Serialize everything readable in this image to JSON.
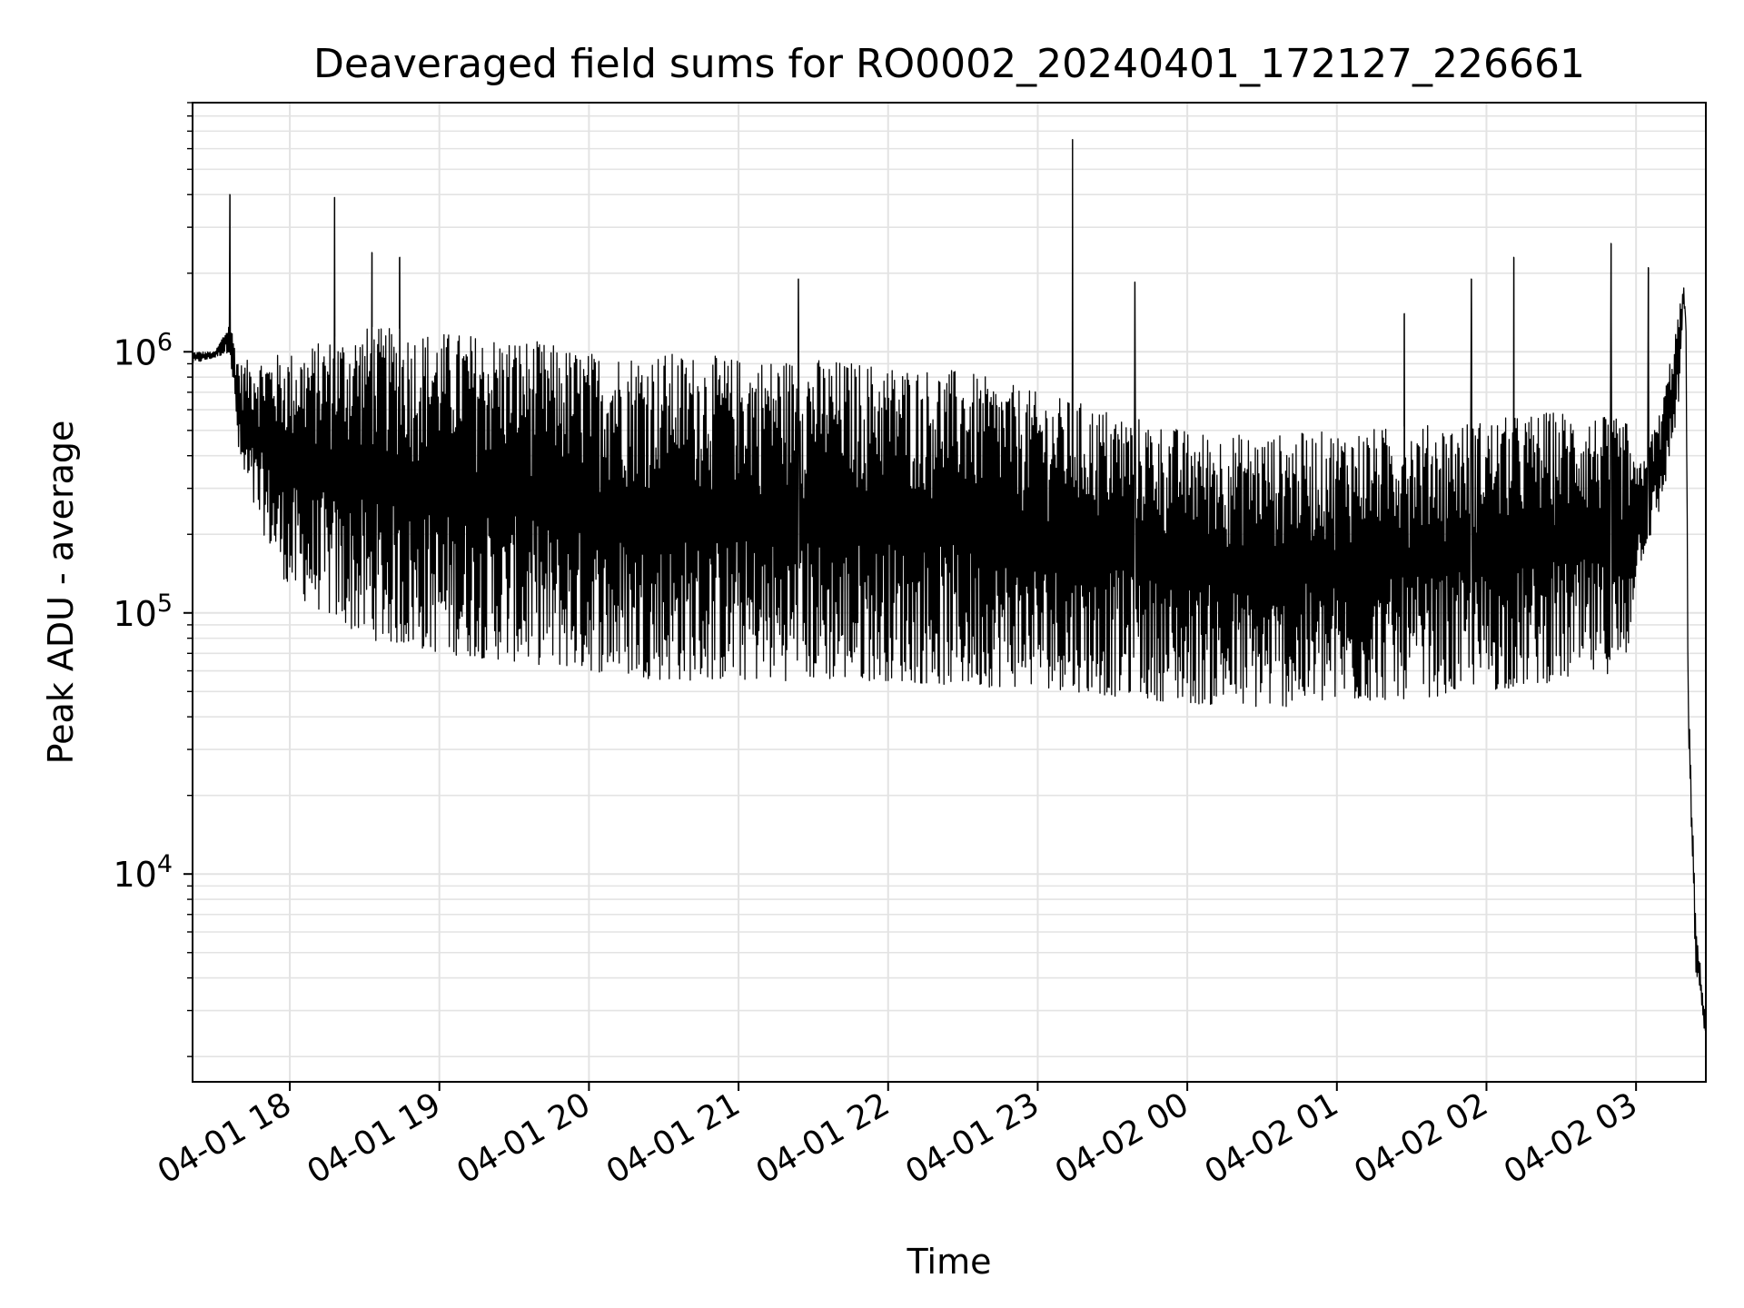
{
  "chart_data": {
    "type": "line",
    "title": "Deaveraged field sums for RO0002_20240401_172127_226661",
    "xlabel": "Time",
    "ylabel": "Peak ADU - average",
    "y_scale": "log",
    "x_range": [
      "2024-04-01 17:21",
      "2024-04-02 03:28"
    ],
    "ylim": [
      1600,
      9000000
    ],
    "grid": true,
    "legend": "none",
    "line_color": "#000000",
    "grid_color": "#e3e3e3",
    "x_tick_values": [
      "2024-04-01 18:00",
      "2024-04-01 19:00",
      "2024-04-01 20:00",
      "2024-04-01 21:00",
      "2024-04-01 22:00",
      "2024-04-01 23:00",
      "2024-04-02 00:00",
      "2024-04-02 01:00",
      "2024-04-02 02:00",
      "2024-04-02 03:00"
    ],
    "x_tick_labels": [
      "04-01 18",
      "04-01 19",
      "04-01 20",
      "04-01 21",
      "04-01 22",
      "04-01 23",
      "04-02 00",
      "04-02 01",
      "04-02 02",
      "04-02 03"
    ],
    "y_ticks": [
      {
        "value": 10000,
        "base": "10",
        "exp": "4"
      },
      {
        "value": 100000,
        "base": "10",
        "exp": "5"
      },
      {
        "value": 1000000,
        "base": "10",
        "exp": "6"
      }
    ],
    "series": [
      {
        "style": "dense-oscillating",
        "envelope": {
          "time": [
            "2024-04-01 17:21",
            "2024-04-01 17:30",
            "2024-04-01 17:36",
            "2024-04-01 17:40",
            "2024-04-01 17:45",
            "2024-04-01 18:00",
            "2024-04-01 18:30",
            "2024-04-01 19:00",
            "2024-04-01 19:30",
            "2024-04-01 20:00",
            "2024-04-01 20:30",
            "2024-04-01 21:00",
            "2024-04-01 21:30",
            "2024-04-01 22:00",
            "2024-04-01 22:30",
            "2024-04-01 23:00",
            "2024-04-01 23:30",
            "2024-04-02 00:00",
            "2024-04-02 00:30",
            "2024-04-02 01:00",
            "2024-04-02 01:30",
            "2024-04-02 02:00",
            "2024-04-02 02:30",
            "2024-04-02 02:56",
            "2024-04-02 03:00",
            "2024-04-02 03:10",
            "2024-04-02 03:17",
            "2024-04-02 03:19",
            "2024-04-02 03:20",
            "2024-04-02 03:21",
            "2024-04-02 03:24",
            "2024-04-02 03:28"
          ],
          "upper": [
            1000000,
            1000000,
            1300000,
            900000,
            950000,
            1000000,
            1250000,
            1200000,
            1150000,
            1000000,
            1000000,
            950000,
            950000,
            900000,
            850000,
            700000,
            600000,
            500000,
            480000,
            500000,
            520000,
            550000,
            600000,
            550000,
            350000,
            600000,
            1400000,
            1800000,
            1500000,
            50000,
            6500,
            2800
          ],
          "lower": [
            900000,
            950000,
            1000000,
            350000,
            250000,
            120000,
            80000,
            70000,
            65000,
            60000,
            55000,
            55000,
            55000,
            55000,
            52000,
            52000,
            48000,
            45000,
            43000,
            45000,
            47000,
            50000,
            55000,
            60000,
            140000,
            250000,
            600000,
            1500000,
            1200000,
            30000,
            4200,
            2300
          ]
        },
        "spikes": [
          {
            "time": "2024-04-01 17:36",
            "value": 4000000
          },
          {
            "time": "2024-04-01 18:18",
            "value": 3900000
          },
          {
            "time": "2024-04-01 18:33",
            "value": 2400000
          },
          {
            "time": "2024-04-01 18:44",
            "value": 2300000
          },
          {
            "time": "2024-04-01 21:24",
            "value": 1900000
          },
          {
            "time": "2024-04-01 23:14",
            "value": 6500000
          },
          {
            "time": "2024-04-01 23:39",
            "value": 1850000
          },
          {
            "time": "2024-04-02 01:27",
            "value": 1400000
          },
          {
            "time": "2024-04-02 01:54",
            "value": 1900000
          },
          {
            "time": "2024-04-02 02:11",
            "value": 2300000
          },
          {
            "time": "2024-04-02 02:50",
            "value": 2600000
          },
          {
            "time": "2024-04-02 03:05",
            "value": 2100000
          }
        ]
      }
    ]
  }
}
